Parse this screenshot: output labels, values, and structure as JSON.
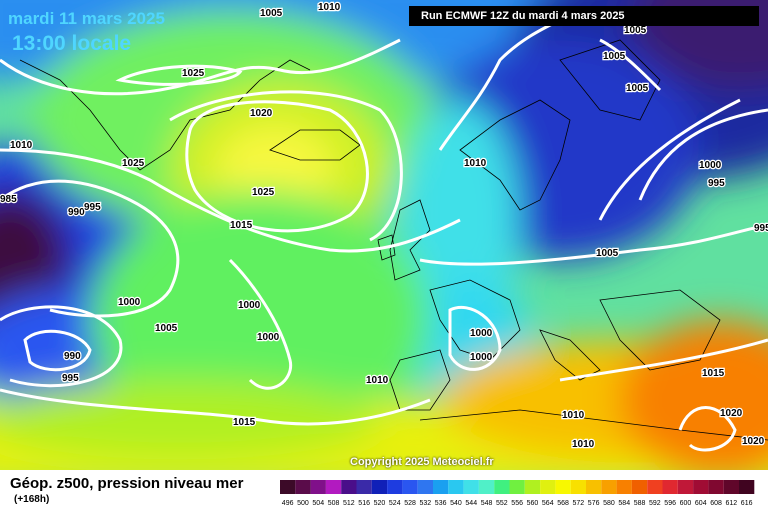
{
  "header": {
    "date_line": "mardi 11 mars 2025",
    "time_line": "13:00 locale",
    "run_info": "Run ECMWF 12Z du mardi 4 mars 2025"
  },
  "footer": {
    "legend_title": "Géop. z500, pression niveau mer",
    "forecast_hours": "(+168h)",
    "copyright": "Copyright 2025 Meteociel.fr"
  },
  "scale": {
    "values": [
      "496",
      "500",
      "504",
      "508",
      "512",
      "516",
      "520",
      "524",
      "528",
      "532",
      "536",
      "540",
      "544",
      "548",
      "552",
      "556",
      "560",
      "564",
      "568",
      "572",
      "576",
      "580",
      "584",
      "588",
      "592",
      "596",
      "600",
      "604",
      "608",
      "612",
      "616"
    ],
    "colors": [
      "#3c0a28",
      "#5a0c4a",
      "#80108a",
      "#b21ac0",
      "#4a0e8a",
      "#3a2aa8",
      "#1020b8",
      "#1e3ce0",
      "#2a56f0",
      "#2f76f0",
      "#1aa0f0",
      "#2ac8f0",
      "#40e0e8",
      "#50f0c8",
      "#40f080",
      "#70f040",
      "#b0f020",
      "#e0f010",
      "#f8f800",
      "#f8e000",
      "#f8c000",
      "#f8a000",
      "#f88000",
      "#f06000",
      "#f04020",
      "#e02830",
      "#c01838",
      "#a00c34",
      "#800830",
      "#60062a",
      "#400420"
    ]
  },
  "isobars": [
    {
      "value": "1005",
      "where": "top center"
    },
    {
      "value": "1010",
      "where": "top center"
    },
    {
      "value": "1005",
      "where": "northeast"
    },
    {
      "value": "1005",
      "where": "northeast"
    },
    {
      "value": "1005",
      "where": "northeast"
    },
    {
      "value": "1025",
      "where": "greenland"
    },
    {
      "value": "1020",
      "where": "iceland"
    },
    {
      "value": "1010",
      "where": "west"
    },
    {
      "value": "1025",
      "where": "greenland south"
    },
    {
      "value": "1025",
      "where": "atlantic high"
    },
    {
      "value": "1010",
      "where": "north sea"
    },
    {
      "value": "1000",
      "where": "scandinavia"
    },
    {
      "value": "995",
      "where": "scandinavia"
    },
    {
      "value": "985",
      "where": "west edge"
    },
    {
      "value": "990",
      "where": "labrador"
    },
    {
      "value": "995",
      "where": "labrador"
    },
    {
      "value": "1015",
      "where": "mid atlantic"
    },
    {
      "value": "995",
      "where": "east edge"
    },
    {
      "value": "1005",
      "where": "central europe"
    },
    {
      "value": "1000",
      "where": "atlantic low"
    },
    {
      "value": "1000",
      "where": "atlantic low"
    },
    {
      "value": "1000",
      "where": "atlantic low"
    },
    {
      "value": "1005",
      "where": "atlantic low"
    },
    {
      "value": "1000",
      "where": "france"
    },
    {
      "value": "1000",
      "where": "france"
    },
    {
      "value": "990",
      "where": "southwest low"
    },
    {
      "value": "995",
      "where": "southwest low"
    },
    {
      "value": "1010",
      "where": "iberia"
    },
    {
      "value": "1015",
      "where": "azores"
    },
    {
      "value": "1015",
      "where": "balkans"
    },
    {
      "value": "1010",
      "where": "north africa"
    },
    {
      "value": "1010",
      "where": "north africa"
    },
    {
      "value": "1020",
      "where": "eastern med"
    },
    {
      "value": "1020",
      "where": "eastern med"
    }
  ]
}
